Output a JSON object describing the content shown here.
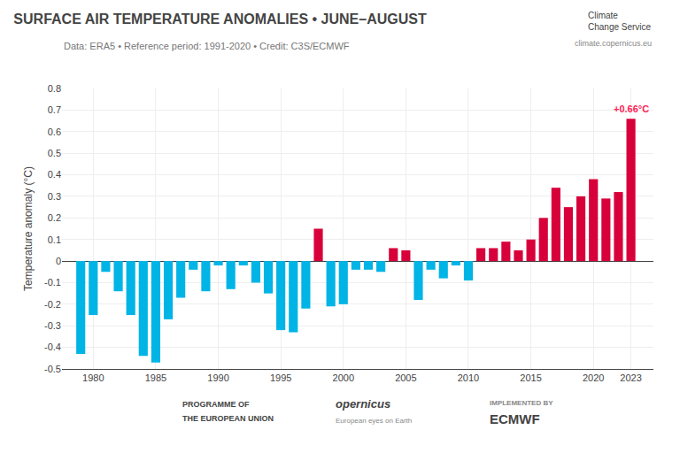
{
  "chart_data": {
    "type": "bar",
    "title": "SURFACE AIR TEMPERATURE ANOMALIES • JUNE–AUGUST",
    "subtitle": "Data: ERA5 • Reference period: 1991-2020 • Credit: C3S/ECMWF",
    "y_label": "Temperature anomaly (°C)",
    "x": [
      1979,
      1980,
      1981,
      1982,
      1983,
      1984,
      1985,
      1986,
      1987,
      1988,
      1989,
      1990,
      1991,
      1992,
      1993,
      1994,
      1995,
      1996,
      1997,
      1998,
      1999,
      2000,
      2001,
      2002,
      2003,
      2004,
      2005,
      2006,
      2007,
      2008,
      2009,
      2010,
      2011,
      2012,
      2013,
      2014,
      2015,
      2016,
      2017,
      2018,
      2019,
      2020,
      2021,
      2022,
      2023
    ],
    "values": [
      -0.43,
      -0.25,
      -0.05,
      -0.14,
      -0.25,
      -0.44,
      -0.47,
      -0.27,
      -0.17,
      -0.04,
      -0.14,
      -0.02,
      -0.13,
      -0.02,
      -0.1,
      -0.15,
      -0.32,
      -0.33,
      -0.22,
      0.15,
      -0.21,
      -0.2,
      -0.04,
      -0.04,
      -0.05,
      0.06,
      0.05,
      -0.18,
      -0.04,
      -0.08,
      -0.02,
      -0.09,
      0.06,
      0.06,
      0.09,
      0.05,
      0.1,
      0.2,
      0.34,
      0.25,
      0.3,
      0.38,
      0.29,
      0.32,
      0.66
    ],
    "colors": [
      "#00b4e6",
      "#00b4e6",
      "#00b4e6",
      "#00b4e6",
      "#00b4e6",
      "#00b4e6",
      "#00b4e6",
      "#00b4e6",
      "#00b4e6",
      "#00b4e6",
      "#00b4e6",
      "#00b4e6",
      "#00b4e6",
      "#00b4e6",
      "#00b4e6",
      "#00b4e6",
      "#00b4e6",
      "#00b4e6",
      "#00b4e6",
      "#d8003a",
      "#00b4e6",
      "#00b4e6",
      "#00b4e6",
      "#00b4e6",
      "#00b4e6",
      "#d8003a",
      "#d8003a",
      "#00b4e6",
      "#00b4e6",
      "#00b4e6",
      "#00b4e6",
      "#00b4e6",
      "#d8003a",
      "#d8003a",
      "#d8003a",
      "#d8003a",
      "#d8003a",
      "#d8003a",
      "#d8003a",
      "#d8003a",
      "#d8003a",
      "#d8003a",
      "#d8003a",
      "#d8003a",
      "#d8003a"
    ],
    "xlim": [
      1977.5,
      2024.8
    ],
    "xticks": [
      1980,
      1985,
      1990,
      1995,
      2000,
      2005,
      2010,
      2015,
      2020,
      2023
    ],
    "ylim": [
      -0.5,
      0.8
    ],
    "yticks": [
      -0.5,
      -0.4,
      -0.3,
      -0.2,
      -0.1,
      0,
      0.1,
      0.2,
      0.3,
      0.4,
      0.5,
      0.6,
      0.7,
      0.8
    ],
    "grid": true,
    "annotations": [
      {
        "x": 2023,
        "y": 0.66,
        "text": "+0.66°C",
        "color": "#ff2255"
      },
      {
        "text": "Climate\nChange Service"
      },
      {
        "text": "climate.copernicus.eu"
      },
      {
        "text": "PROGRAMME OF"
      },
      {
        "text": "THE EUROPEAN UNION"
      },
      {
        "text": "opernicus"
      },
      {
        "text": "European eyes on Earth"
      },
      {
        "text": "IMPLEMENTED BY"
      },
      {
        "text": "ECMWF"
      }
    ]
  }
}
